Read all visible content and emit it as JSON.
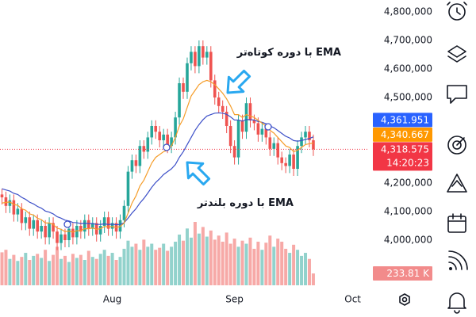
{
  "chart_data": {
    "type": "candlestick",
    "ylim": [
      3813900,
      4841700
    ],
    "yticks": [
      {
        "value": 4800000,
        "label": "4,800,000"
      },
      {
        "value": 4700000,
        "label": "4,700,000"
      },
      {
        "value": 4600000,
        "label": "4,600,000"
      },
      {
        "value": 4500000,
        "label": "4,500,000"
      },
      {
        "value": 4200000,
        "label": "4,200,000"
      },
      {
        "value": 4100000,
        "label": "4,100,000"
      },
      {
        "value": 4000000,
        "label": "4,000,000"
      }
    ],
    "xlim": [
      -0.5,
      93.1
    ],
    "xticks": [
      {
        "value": 28,
        "label": "Aug"
      },
      {
        "value": 59,
        "label": "Sep"
      },
      {
        "value": 89,
        "label": "Oct"
      }
    ],
    "up_color": "#26a69a",
    "down_color": "#ef5350",
    "open": [
      4160000,
      4150000,
      4120000,
      4140000,
      4090000,
      4110000,
      4060000,
      4080000,
      4040000,
      4070000,
      4030000,
      4050000,
      4010000,
      4060000,
      4030000,
      3990000,
      4020000,
      4000000,
      4040000,
      4010000,
      4050000,
      4030000,
      4070000,
      4040000,
      4060000,
      4020000,
      4050000,
      4080000,
      4040000,
      4060000,
      4030000,
      4070000,
      4120000,
      4240000,
      4280000,
      4260000,
      4330000,
      4310000,
      4360000,
      4400000,
      4380000,
      4350000,
      4370000,
      4330000,
      4360000,
      4430000,
      4550000,
      4520000,
      4620000,
      4660000,
      4610000,
      4680000,
      4640000,
      4660000,
      4560000,
      4500000,
      4470000,
      4450000,
      4400000,
      4330000,
      4290000,
      4420000,
      4380000,
      4480000,
      4420000,
      4410000,
      4370000,
      4390000,
      4360000,
      4320000,
      4340000,
      4290000,
      4270000,
      4260000,
      4300000,
      4250000,
      4330000,
      4360000,
      4380000,
      4350000
    ],
    "high": [
      4180000,
      4170000,
      4160000,
      4160000,
      4130000,
      4130000,
      4100000,
      4100000,
      4090000,
      4090000,
      4070000,
      4070000,
      4080000,
      4080000,
      4050000,
      4040000,
      4040000,
      4060000,
      4060000,
      4070000,
      4070000,
      4090000,
      4090000,
      4080000,
      4080000,
      4070000,
      4100000,
      4100000,
      4080000,
      4080000,
      4090000,
      4140000,
      4260000,
      4300000,
      4300000,
      4350000,
      4350000,
      4380000,
      4420000,
      4420000,
      4400000,
      4390000,
      4390000,
      4380000,
      4450000,
      4570000,
      4570000,
      4640000,
      4680000,
      4680000,
      4700000,
      4700000,
      4680000,
      4680000,
      4580000,
      4520000,
      4490000,
      4470000,
      4420000,
      4350000,
      4440000,
      4440000,
      4500000,
      4500000,
      4440000,
      4430000,
      4410000,
      4410000,
      4380000,
      4360000,
      4360000,
      4310000,
      4290000,
      4320000,
      4320000,
      4350000,
      4380000,
      4400000,
      4400000,
      4370000
    ],
    "low": [
      4125000,
      4095000,
      4095000,
      4065000,
      4065000,
      4035000,
      4035000,
      4015000,
      4015000,
      4005000,
      4005000,
      3985000,
      3985000,
      4005000,
      3965000,
      3965000,
      3975000,
      3975000,
      3985000,
      3985000,
      4005000,
      4005000,
      4015000,
      4015000,
      3995000,
      3995000,
      4025000,
      4015000,
      4015000,
      4005000,
      4005000,
      4045000,
      4095000,
      4215000,
      4235000,
      4235000,
      4285000,
      4285000,
      4335000,
      4355000,
      4325000,
      4325000,
      4305000,
      4305000,
      4335000,
      4405000,
      4495000,
      4495000,
      4595000,
      4585000,
      4585000,
      4615000,
      4615000,
      4535000,
      4475000,
      4445000,
      4425000,
      4375000,
      4305000,
      4265000,
      4265000,
      4355000,
      4355000,
      4395000,
      4385000,
      4345000,
      4345000,
      4335000,
      4295000,
      4295000,
      4265000,
      4245000,
      4235000,
      4235000,
      4225000,
      4225000,
      4305000,
      4335000,
      4325000,
      4295000
    ],
    "close": [
      4150000,
      4120000,
      4140000,
      4090000,
      4110000,
      4060000,
      4080000,
      4040000,
      4070000,
      4030000,
      4050000,
      4010000,
      4060000,
      4030000,
      3990000,
      4020000,
      4000000,
      4040000,
      4010000,
      4050000,
      4030000,
      4070000,
      4040000,
      4060000,
      4020000,
      4050000,
      4080000,
      4040000,
      4060000,
      4030000,
      4070000,
      4120000,
      4240000,
      4280000,
      4260000,
      4330000,
      4310000,
      4360000,
      4400000,
      4380000,
      4350000,
      4370000,
      4330000,
      4360000,
      4430000,
      4550000,
      4520000,
      4620000,
      4660000,
      4610000,
      4680000,
      4640000,
      4660000,
      4560000,
      4500000,
      4470000,
      4450000,
      4400000,
      4330000,
      4290000,
      4420000,
      4380000,
      4480000,
      4420000,
      4410000,
      4370000,
      4390000,
      4360000,
      4320000,
      4340000,
      4290000,
      4270000,
      4260000,
      4300000,
      4250000,
      4330000,
      4360000,
      4380000,
      4350000,
      4318575
    ],
    "close_label": "4,318.575",
    "countdown": "14:20:23",
    "close_label_color": "#f23645",
    "lines": [
      {
        "color": "#3d50c8",
        "label_color": "#2962ff",
        "last_label": "4,361.951",
        "values": [
          4180000,
          4176000,
          4172000,
          4164000,
          4160000,
          4150000,
          4143000,
          4133000,
          4127000,
          4118000,
          4112000,
          4102000,
          4098000,
          4092000,
          4082000,
          4077000,
          4070000,
          4067000,
          4062000,
          4061000,
          4058000,
          4059000,
          4058000,
          4058000,
          4055000,
          4055000,
          4057000,
          4055000,
          4056000,
          4054000,
          4055000,
          4061000,
          4077000,
          4095000,
          4110000,
          4130000,
          4146000,
          4165000,
          4185000,
          4202000,
          4215000,
          4230000,
          4240000,
          4250000,
          4265000,
          4290000,
          4310000,
          4335000,
          4360000,
          4385000,
          4405000,
          4422000,
          4435000,
          4440000,
          4445000,
          4446000,
          4445000,
          4441000,
          4432000,
          4421000,
          4421000,
          4417000,
          4423000,
          4422000,
          4421000,
          4416000,
          4413000,
          4408000,
          4400000,
          4394000,
          4384000,
          4374000,
          4364000,
          4358000,
          4349000,
          4347000,
          4349000,
          4353000,
          4356000,
          4361951
        ]
      },
      {
        "color": "#f59d2a",
        "label_color": "#ff9800",
        "last_label": "4,340.667",
        "values": [
          4130000,
          4132000,
          4134000,
          4125000,
          4122000,
          4110000,
          4105000,
          4092000,
          4088000,
          4077000,
          4072000,
          4060000,
          4060000,
          4055000,
          4042000,
          4038000,
          4030000,
          4032000,
          4028000,
          4033000,
          4033000,
          4040000,
          4040000,
          4043000,
          4038000,
          4040000,
          4048000,
          4046000,
          4048000,
          4044000,
          4048000,
          4060000,
          4095000,
          4130000,
          4155000,
          4190000,
          4210000,
          4240000,
          4270000,
          4290000,
          4300000,
          4310000,
          4315000,
          4330000,
          4360000,
          4400000,
          4425000,
          4465000,
          4505000,
          4525000,
          4545000,
          4555000,
          4560000,
          4555000,
          4545000,
          4530000,
          4515000,
          4495000,
          4470000,
          4440000,
          4440000,
          4430000,
          4440000,
          4435000,
          4430000,
          4420000,
          4410000,
          4400000,
          4385000,
          4375000,
          4360000,
          4345000,
          4330000,
          4325000,
          4310000,
          4315000,
          4325000,
          4335000,
          4338000,
          4340667
        ]
      }
    ],
    "volume": {
      "ylim": [
        0,
        1500000
      ],
      "label_color": "#f28b8b",
      "values": [
        650000,
        700000,
        520000,
        600000,
        480000,
        560000,
        640000,
        500000,
        580000,
        620000,
        540000,
        700000,
        480000,
        600000,
        760000,
        520000,
        580000,
        460000,
        620000,
        540000,
        600000,
        500000,
        680000,
        560000,
        520000,
        620000,
        700000,
        580000,
        640000,
        500000,
        560000,
        720000,
        880000,
        760000,
        820000,
        700000,
        900000,
        760000,
        820000,
        700000,
        740000,
        820000,
        680000,
        760000,
        860000,
        1000000,
        880000,
        1120000,
        940000,
        1250000,
        1020000,
        1150000,
        960000,
        1080000,
        900000,
        980000,
        860000,
        1040000,
        820000,
        920000,
        760000,
        880000,
        820000,
        940000,
        720000,
        860000,
        700000,
        840000,
        980000,
        760000,
        920000,
        860000,
        720000,
        640000,
        800000,
        700000,
        580000,
        640000,
        520000,
        233810
      ],
      "value_labels": [
        null,
        null,
        null,
        null,
        null,
        null,
        null,
        null,
        null,
        null,
        null,
        null,
        null,
        null,
        null,
        null,
        null,
        null,
        null,
        null,
        null,
        null,
        null,
        null,
        null,
        null,
        null,
        null,
        null,
        null,
        null,
        null,
        null,
        null,
        null,
        null,
        null,
        null,
        null,
        null,
        null,
        null,
        null,
        null,
        null,
        null,
        null,
        null,
        null,
        null,
        null,
        null,
        null,
        null,
        null,
        null,
        null,
        null,
        null,
        null,
        null,
        null,
        null,
        null,
        null,
        null,
        null,
        null,
        null,
        null,
        null,
        null,
        null,
        null,
        null,
        null,
        null,
        null,
        null,
        "233.81 K"
      ]
    },
    "annotations": [
      {
        "text": "EMA با دوره کوتاه‌تر"
      },
      {
        "text": "EMA با دوره بلندتر"
      }
    ]
  }
}
